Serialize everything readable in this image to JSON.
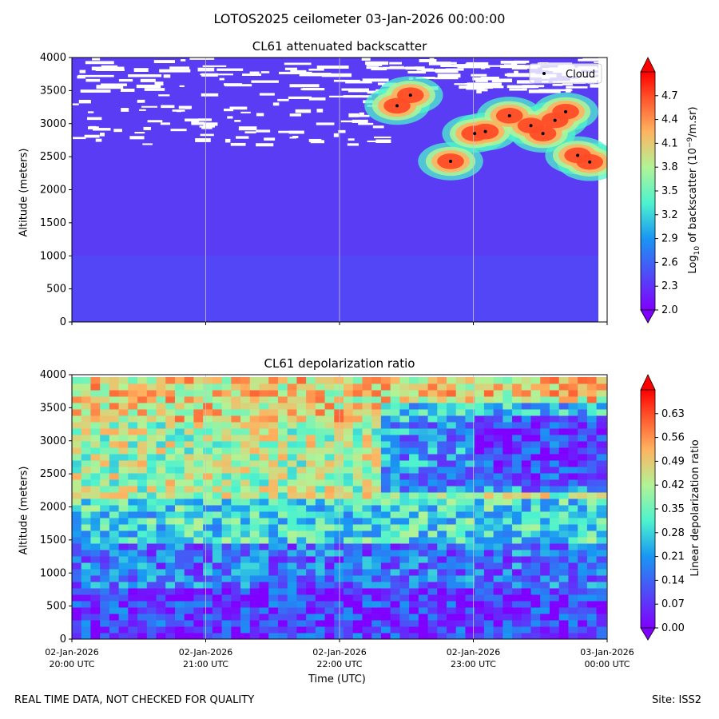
{
  "figure": {
    "suptitle": "LOTOS2025 ceilometer 03-Jan-2026 00:00:00",
    "footer_left": "REAL TIME DATA, NOT CHECKED FOR QUALITY",
    "footer_right": "Site: ISS2",
    "xlabel": "Time (UTC)"
  },
  "chart_data": [
    {
      "type": "heatmap",
      "title": "CL61 attenuated backscatter",
      "xlabel": "Time (UTC)",
      "ylabel": "Altitude (meters)",
      "xlim": [
        "02-Jan-2026 20:00 UTC",
        "03-Jan-2026 00:00 UTC"
      ],
      "ylim": [
        0,
        4000
      ],
      "y_ticks": [
        0,
        500,
        1000,
        1500,
        2000,
        2500,
        3000,
        3500,
        4000
      ],
      "x_ticks": [
        {
          "date": "02-Jan-2026",
          "time": "20:00 UTC"
        },
        {
          "date": "02-Jan-2026",
          "time": "21:00 UTC"
        },
        {
          "date": "02-Jan-2026",
          "time": "22:00 UTC"
        },
        {
          "date": "02-Jan-2026",
          "time": "23:00 UTC"
        },
        {
          "date": "03-Jan-2026",
          "time": "00:00 UTC"
        }
      ],
      "grid": "vertical",
      "colorbar": {
        "label_prefix": "Log",
        "label_sub": "10",
        "label_mid": " of backscatter (10",
        "label_sup": "−9",
        "label_suffix": "/m.sr)",
        "range": [
          2.0,
          5.0
        ],
        "ticks": [
          2.0,
          2.3,
          2.6,
          2.9,
          3.2,
          3.5,
          3.8,
          4.1,
          4.4,
          4.7
        ],
        "colormap": "rainbow",
        "extend": "both"
      },
      "legend": {
        "label": "Cloud",
        "placement": "top-right"
      },
      "cloud_points": [
        {
          "time_h": 2.43,
          "alt": 3270
        },
        {
          "time_h": 2.53,
          "alt": 3430
        },
        {
          "time_h": 2.83,
          "alt": 2430
        },
        {
          "time_h": 3.01,
          "alt": 2850
        },
        {
          "time_h": 3.09,
          "alt": 2880
        },
        {
          "time_h": 3.27,
          "alt": 3120
        },
        {
          "time_h": 3.43,
          "alt": 2970
        },
        {
          "time_h": 3.52,
          "alt": 2850
        },
        {
          "time_h": 3.61,
          "alt": 3050
        },
        {
          "time_h": 3.69,
          "alt": 3180
        },
        {
          "time_h": 3.78,
          "alt": 2520
        },
        {
          "time_h": 3.87,
          "alt": 2420
        }
      ],
      "features": [
        {
          "kind": "cloud_layer",
          "t0": 2.2,
          "t1": 3.95,
          "alt_top": 3400,
          "alt_bottom": 2300,
          "level": 4.5
        },
        {
          "kind": "noise_gaps",
          "alt_from": 2700,
          "alt_to": 4000
        }
      ]
    },
    {
      "type": "heatmap",
      "title": "CL61 depolarization ratio",
      "xlabel": "Time (UTC)",
      "ylabel": "Altitude (meters)",
      "xlim": [
        "02-Jan-2026 20:00 UTC",
        "03-Jan-2026 00:00 UTC"
      ],
      "ylim": [
        0,
        4000
      ],
      "y_ticks": [
        0,
        500,
        1000,
        1500,
        2000,
        2500,
        3000,
        3500,
        4000
      ],
      "x_ticks": [
        {
          "date": "02-Jan-2026",
          "time": "20:00 UTC"
        },
        {
          "date": "02-Jan-2026",
          "time": "21:00 UTC"
        },
        {
          "date": "02-Jan-2026",
          "time": "22:00 UTC"
        },
        {
          "date": "02-Jan-2026",
          "time": "23:00 UTC"
        },
        {
          "date": "03-Jan-2026",
          "time": "00:00 UTC"
        }
      ],
      "grid": "vertical",
      "colorbar": {
        "label": "Linear depolarization ratio",
        "range": [
          0.0,
          0.7
        ],
        "ticks": [
          "0.00",
          "0.07",
          "0.14",
          "0.21",
          "0.28",
          "0.35",
          "0.42",
          "0.49",
          "0.56",
          "0.63"
        ],
        "colormap": "rainbow",
        "extend": "both"
      }
    }
  ]
}
